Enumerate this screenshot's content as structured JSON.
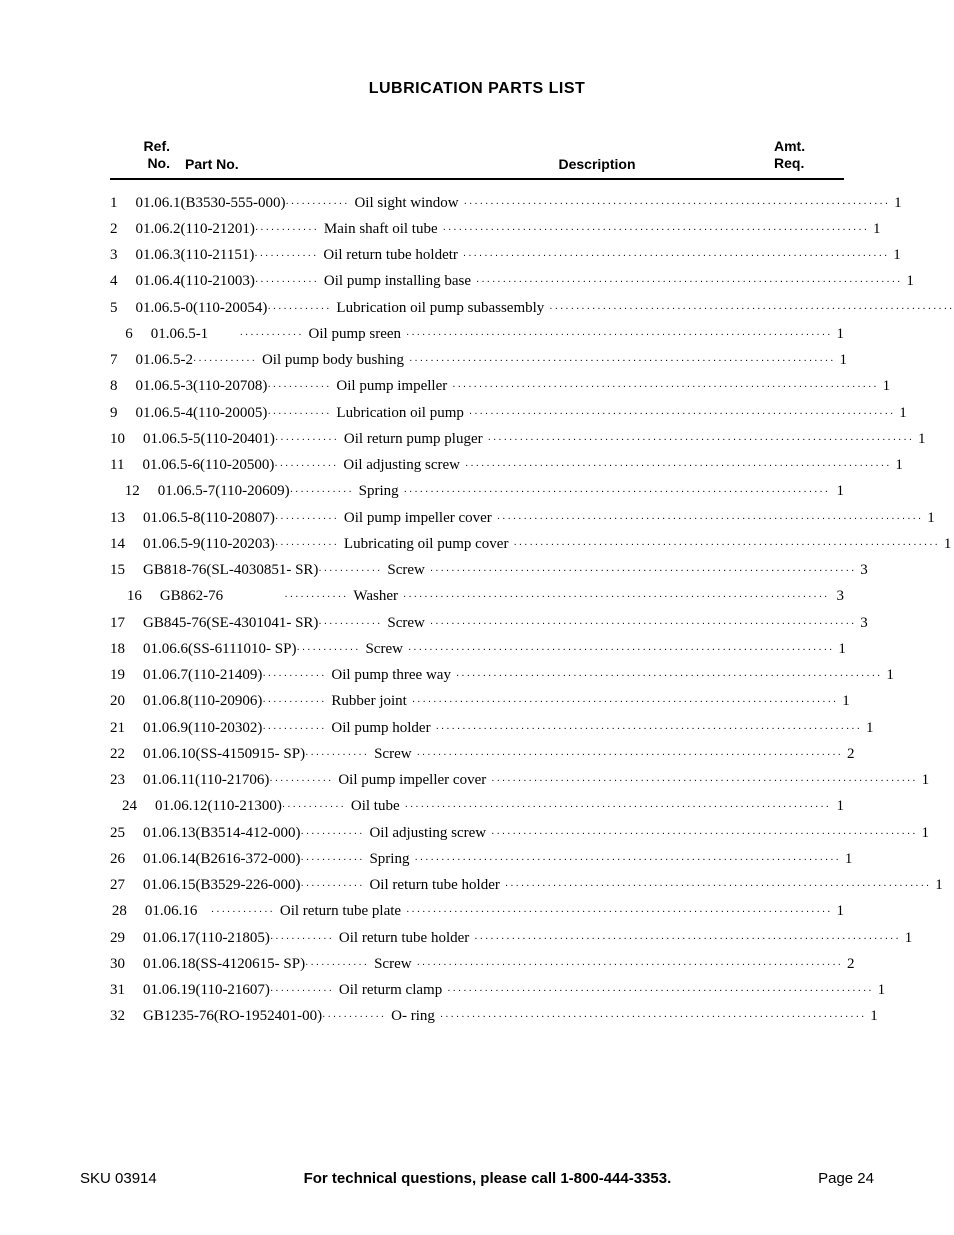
{
  "title": "LUBRICATION PARTS LIST",
  "headers": {
    "ref1": "Ref.",
    "ref2": "No.",
    "part": "Part No.",
    "desc": "Description",
    "amt1": "Amt.",
    "amt2": "Req."
  },
  "rows": [
    {
      "ref": "1",
      "part": "01.06.1(B3530-555-000)",
      "desc": "Oil sight window",
      "amt": "1"
    },
    {
      "ref": "2",
      "part": "01.06.2(110-21201)",
      "desc": "Main shaft oil tube",
      "amt": "1"
    },
    {
      "ref": "3",
      "part": "01.06.3(110-21151)",
      "desc": "Oil return tube holdetr",
      "amt": "1"
    },
    {
      "ref": "4",
      "part": "01.06.4(110-21003)",
      "desc": "Oil pump installing base",
      "amt": "1"
    },
    {
      "ref": "5",
      "part": "01.06.5-0(110-20054)",
      "desc": "Lubrication oil pump subassembly",
      "amt": "1"
    },
    {
      "ref": "6",
      "part": "01.06.5-1",
      "desc": "Oil pump sreen",
      "amt": "1"
    },
    {
      "ref": "7",
      "part": "01.06.5-2",
      "desc": "Oil pump body bushing",
      "amt": "1"
    },
    {
      "ref": "8",
      "part": "01.06.5-3(110-20708)",
      "desc": "Oil pump impeller",
      "amt": "1"
    },
    {
      "ref": "9",
      "part": "01.06.5-4(110-20005)",
      "desc": "Lubrication oil pump",
      "amt": "1"
    },
    {
      "ref": "10",
      "part": "01.06.5-5(110-20401)",
      "desc": "Oil return pump pluger",
      "amt": "1"
    },
    {
      "ref": "11",
      "part": "01.06.5-6(110-20500)",
      "desc": "Oil adjusting screw",
      "amt": "1"
    },
    {
      "ref": "12",
      "part": "01.06.5-7(110-20609)",
      "desc": "Spring",
      "amt": "1"
    },
    {
      "ref": "13",
      "part": "01.06.5-8(110-20807)",
      "desc": "Oil pump impeller cover",
      "amt": "1"
    },
    {
      "ref": "14",
      "part": "01.06.5-9(110-20203)",
      "desc": "Lubricating oil pump cover",
      "amt": "1"
    },
    {
      "ref": "15",
      "part": "GB818-76(SL-4030851- SR)",
      "desc": "Screw",
      "amt": "3"
    },
    {
      "ref": "16",
      "part": "GB862-76",
      "desc": "Washer",
      "amt": "3"
    },
    {
      "ref": "17",
      "part": "GB845-76(SE-4301041- SR)",
      "desc": "Screw",
      "amt": "3"
    },
    {
      "ref": "18",
      "part": "01.06.6(SS-6111010- SP)",
      "desc": "Screw",
      "amt": "1"
    },
    {
      "ref": "19",
      "part": "01.06.7(110-21409)",
      "desc": "Oil pump three way",
      "amt": "1"
    },
    {
      "ref": "20",
      "part": "01.06.8(110-20906)",
      "desc": "Rubber joint",
      "amt": "1"
    },
    {
      "ref": "21",
      "part": "01.06.9(110-20302)",
      "desc": "Oil pump holder",
      "amt": "1"
    },
    {
      "ref": "22",
      "part": "01.06.10(SS-4150915- SP)",
      "desc": "Screw",
      "amt": "2"
    },
    {
      "ref": "23",
      "part": "01.06.11(110-21706)",
      "desc": "Oil pump impeller cover",
      "amt": "1"
    },
    {
      "ref": "24",
      "part": "01.06.12(110-21300)",
      "desc": "Oil tube",
      "amt": "1"
    },
    {
      "ref": "25",
      "part": "01.06.13(B3514-412-000)",
      "desc": "Oil adjusting screw",
      "amt": "1"
    },
    {
      "ref": "26",
      "part": "01.06.14(B2616-372-000)",
      "desc": "Spring",
      "amt": "1"
    },
    {
      "ref": "27",
      "part": "01.06.15(B3529-226-000)",
      "desc": "Oil return tube holder",
      "amt": "1"
    },
    {
      "ref": "28",
      "part": "01.06.16",
      "desc": "Oil return tube plate",
      "amt": "1"
    },
    {
      "ref": "29",
      "part": "01.06.17(110-21805)",
      "desc": "Oil return tube holder",
      "amt": "1"
    },
    {
      "ref": "30",
      "part": "01.06.18(SS-4120615- SP)",
      "desc": "Screw",
      "amt": "2"
    },
    {
      "ref": "31",
      "part": "01.06.19(110-21607)",
      "desc": "Oil returm clamp",
      "amt": "1"
    },
    {
      "ref": "32",
      "part": "GB1235-76(RO-1952401-00)",
      "desc": "O- ring",
      "amt": "1"
    }
  ],
  "footer": {
    "left": "SKU 03914",
    "mid": "For technical questions, please call 1-800-444-3353.",
    "right": "Page 24"
  },
  "style": {
    "dot_fill": "················································································"
  }
}
